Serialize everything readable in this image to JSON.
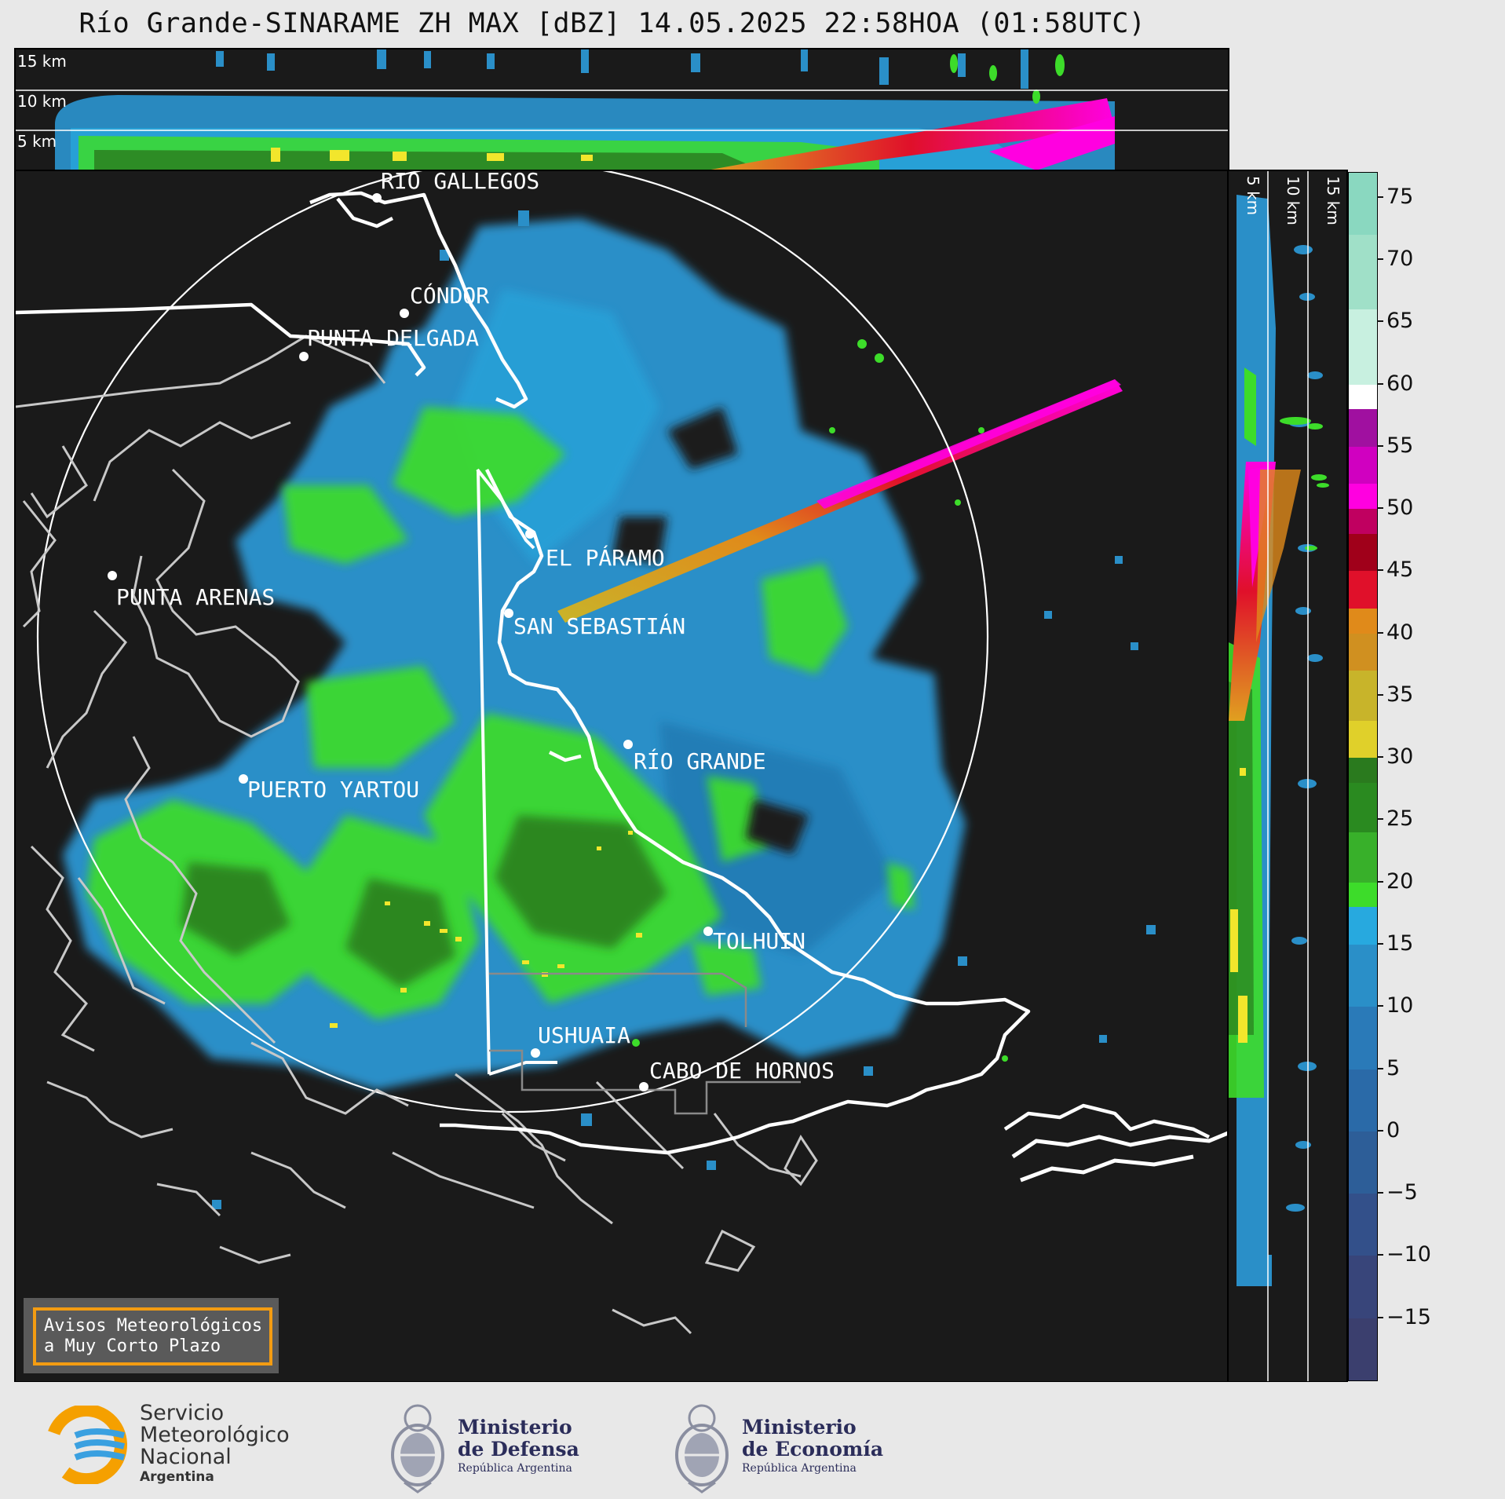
{
  "title": "Río Grande-SINARAME ZH MAX [dBZ] 14.05.2025 22:58HOA (01:58UTC)",
  "top_panel": {
    "altitude_labels": [
      "15 km",
      "10 km",
      "5 km"
    ]
  },
  "side_panel": {
    "altitude_labels": [
      "5 km",
      "10 km",
      "15 km"
    ]
  },
  "locations": [
    {
      "name": "RÍO GALLEGOS",
      "id": "rio-gallegos"
    },
    {
      "name": "CÓNDOR",
      "id": "condor"
    },
    {
      "name": "PUNTA DELGADA",
      "id": "punta-delgada"
    },
    {
      "name": "EL PÁRAMO",
      "id": "el-paramo"
    },
    {
      "name": "PUNTA ARENAS",
      "id": "punta-arenas"
    },
    {
      "name": "SAN SEBASTIÁN",
      "id": "san-sebastian"
    },
    {
      "name": "RÍO GRANDE",
      "id": "rio-grande"
    },
    {
      "name": "PUERTO YARTOU",
      "id": "puerto-yartou"
    },
    {
      "name": "TOLHUIN",
      "id": "tolhuin"
    },
    {
      "name": "USHUAIA",
      "id": "ushuaia"
    },
    {
      "name": "CABO DE HORNOS",
      "id": "cabo-de-hornos"
    }
  ],
  "avisos": {
    "line1": "Avisos Meteorológicos",
    "line2": "a Muy Corto Plazo"
  },
  "colorbar": {
    "unit": "dBZ",
    "ticks": [
      "75",
      "70",
      "65",
      "60",
      "55",
      "50",
      "45",
      "40",
      "35",
      "30",
      "25",
      "20",
      "15",
      "10",
      "5",
      "0",
      "−5",
      "−10",
      "−15"
    ],
    "colors": {
      "low": "#3b3f6e",
      "blue": "#2a8fc8",
      "cyan": "#27a9df",
      "green": "#3ddc2a",
      "darkgreen": "#2a7a1e",
      "yellow": "#f2e62c",
      "olive": "#c8b42a",
      "orange": "#e08a1a",
      "red": "#e0102a",
      "darkred": "#a0001a",
      "magenta": "#ff00e0",
      "purple": "#a010a0",
      "white": "#ffffff",
      "mint": "#a8e8d0"
    }
  },
  "footer": {
    "smn": {
      "line1": "Servicio",
      "line2": "Meteorológico",
      "line3": "Nacional",
      "line4": "Argentina"
    },
    "defensa": {
      "line1": "Ministerio",
      "line2": "de Defensa",
      "line3": "República Argentina"
    },
    "economia": {
      "line1": "Ministerio",
      "line2": "de Economía",
      "line3": "República Argentina"
    }
  }
}
